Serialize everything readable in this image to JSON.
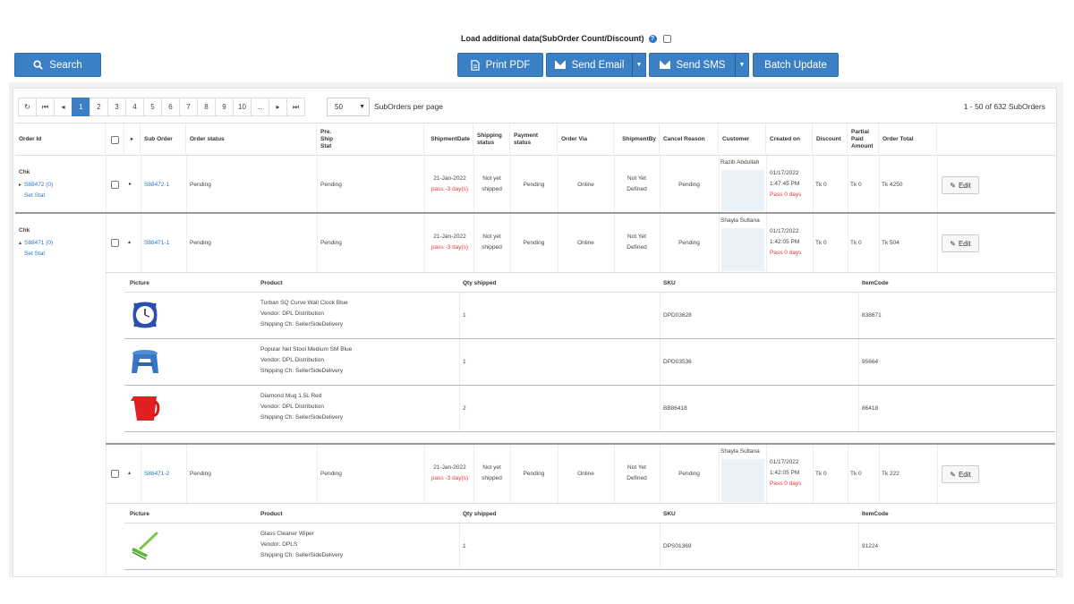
{
  "toolbar": {
    "load_label": "Load additional data(SubOrder Count/Discount)",
    "search": "Search",
    "print_pdf": "Print PDF",
    "send_email": "Send Email",
    "send_sms": "Send SMS",
    "batch_update": "Batch Update"
  },
  "pager": {
    "pages": [
      "1",
      "2",
      "3",
      "4",
      "5",
      "6",
      "7",
      "8",
      "9",
      "10",
      "..."
    ],
    "active": "1",
    "per_page": "50",
    "per_page_label": "SubOrders per page",
    "count": "1 - 50 of 632 SubOrders"
  },
  "columns": {
    "order_id": "Order Id",
    "sub_order": "Sub Order",
    "order_status": "Order status",
    "pre_ship_1": "Pre.",
    "pre_ship_2": "Ship",
    "pre_ship_3": "Stat",
    "shipment_date": "ShipmentDate",
    "shipping_status_1": "Shipping",
    "shipping_status_2": "status",
    "payment_status_1": "Payment",
    "payment_status_2": "status",
    "order_via": "Order Via",
    "shipment_by": "ShipmentBy",
    "cancel_reason": "Cancel Reason",
    "customer": "Customer",
    "created_on": "Created on",
    "discount": "Discount",
    "partial_1": "Partial",
    "partial_2": "Paid",
    "partial_3": "Amount",
    "order_total": "Order Total"
  },
  "sub_columns": {
    "picture": "Picture",
    "product": "Product",
    "qty": "Qty shipped",
    "sku": "SKU",
    "itemcode": "ItemCode"
  },
  "orders": [
    {
      "group": "Chk",
      "order_link": "S88472 (0)",
      "set_stat": "Set Stat",
      "sub_order": "S88472-1",
      "status": "Pending",
      "pre_ship": "Pending",
      "ship_date": "21-Jan-2022",
      "ship_pass": "pass -3 day(s)",
      "shipping_1": "Not yet",
      "shipping_2": "shipped",
      "payment": "Pending",
      "via": "Online",
      "by_1": "Not Yet",
      "by_2": "Defined",
      "cancel": "Pending",
      "customer": "Razib Abdullah",
      "created_date": "01/17/2022",
      "created_time": "1:47:45 PM",
      "created_pass": "Pass 0 days",
      "discount": "Tk 0",
      "partial": "Tk 0",
      "total": "Tk 4250",
      "edit": "Edit"
    },
    {
      "group": "Chk",
      "order_link": "S88471 (0)",
      "set_stat": "Set Stat",
      "sub_order": "S88471-1",
      "status": "Pending",
      "pre_ship": "Pending",
      "ship_date": "21-Jan-2022",
      "ship_pass": "pass -3 day(s)",
      "shipping_1": "Not yet",
      "shipping_2": "shipped",
      "payment": "Pending",
      "via": "Online",
      "by_1": "Not Yet",
      "by_2": "Defined",
      "cancel": "Pending",
      "customer": "Shayla Sultana",
      "created_date": "01/17/2022",
      "created_time": "1:42:05 PM",
      "created_pass": "Pass 0 days",
      "discount": "Tk 0",
      "partial": "Tk 0",
      "total": "Tk 504",
      "edit": "Edit"
    },
    {
      "sub_order": "S88471-2",
      "status": "Pending",
      "pre_ship": "Pending",
      "ship_date": "21-Jan-2022",
      "ship_pass": "pass -3 day(s)",
      "shipping_1": "Not yet",
      "shipping_2": "shipped",
      "payment": "Pending",
      "via": "Online",
      "by_1": "Not Yet",
      "by_2": "Defined",
      "cancel": "Pending",
      "customer": "Shayla Sultana",
      "created_date": "01/17/2022",
      "created_time": "1:42:05 PM",
      "created_pass": "Pass 0 days",
      "discount": "Tk 0",
      "partial": "Tk 0",
      "total": "Tk 222",
      "edit": "Edit"
    }
  ],
  "items_a": [
    {
      "name": "Turban SQ Curve Wall Clock Blue",
      "vendor": "Vendor: DPL Distribution",
      "ship": "Shipping Ch: SellerSideDelivery",
      "qty": "1",
      "sku": "DPD03628",
      "code": "838671",
      "icon": "wall-clock-icon"
    },
    {
      "name": "Popular Net Stool Medium SM Blue",
      "vendor": "Vendor: DPL Distribution",
      "ship": "Shipping Ch: SellerSideDelivery",
      "qty": "1",
      "sku": "DPD03536",
      "code": "95664",
      "icon": "stool-icon"
    },
    {
      "name": "Diamond Mug 1.5L Red",
      "vendor": "Vendor: DPL Distribution",
      "ship": "Shipping Ch: SellerSideDelivery",
      "qty": "2",
      "sku": "BB86418",
      "code": "86418",
      "icon": "mug-icon"
    }
  ],
  "items_b": [
    {
      "name": "Glass Cleaner Wiper",
      "vendor": "Vendor: DPLS",
      "ship": "Shipping Ch: SellerSideDelivery",
      "qty": "1",
      "sku": "DPS01369",
      "code": "91224",
      "icon": "wiper-icon"
    }
  ]
}
